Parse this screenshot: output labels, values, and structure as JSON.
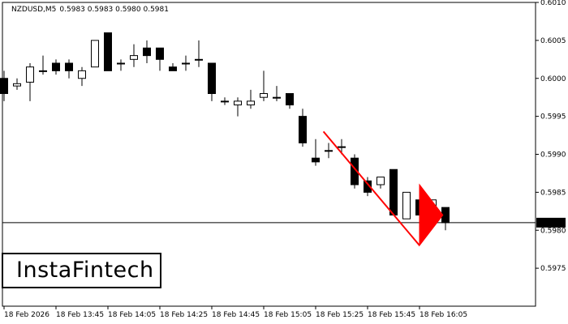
{
  "header": {
    "symbol": "NZDUSD,M5",
    "ohlc": "0.5983 0.5983 0.5980 0.5981"
  },
  "current_price_label": "0.5981",
  "logo_text": "InstaFintech",
  "colors": {
    "background": "#ffffff",
    "candle": "#000000",
    "pattern": "#ff0000",
    "price_label_bg": "#000000",
    "price_label_text": "#ffffff"
  },
  "chart_data": {
    "type": "candlestick",
    "title": "",
    "xlabel": "",
    "ylabel": "",
    "ylim": [
      0.597,
      0.601
    ],
    "y_ticks": [
      "0.6010",
      "0.6005",
      "0.6000",
      "0.5995",
      "0.5990",
      "0.5985",
      "0.5980",
      "0.5975"
    ],
    "x_ticks": [
      {
        "label": "18 Feb 2026",
        "index": 0
      },
      {
        "label": "18 Feb 13:45",
        "index": 4
      },
      {
        "label": "18 Feb 14:05",
        "index": 8
      },
      {
        "label": "18 Feb 14:25",
        "index": 12
      },
      {
        "label": "18 Feb 14:45",
        "index": 16
      },
      {
        "label": "18 Feb 15:05",
        "index": 20
      },
      {
        "label": "18 Feb 15:25",
        "index": 24
      },
      {
        "label": "18 Feb 15:45",
        "index": 28
      },
      {
        "label": "18 Feb 16:05",
        "index": 32
      }
    ],
    "candles": [
      {
        "i": 0,
        "o": 0.6,
        "h": 0.6001,
        "l": 0.5997,
        "c": 0.5998
      },
      {
        "i": 1,
        "o": 0.5999,
        "h": 0.6,
        "l": 0.59985,
        "c": 0.59993
      },
      {
        "i": 2,
        "o": 0.59995,
        "h": 0.6002,
        "l": 0.5997,
        "c": 0.60015
      },
      {
        "i": 3,
        "o": 0.6001,
        "h": 0.6003,
        "l": 0.60005,
        "c": 0.6001
      },
      {
        "i": 4,
        "o": 0.6002,
        "h": 0.60025,
        "l": 0.60005,
        "c": 0.6001
      },
      {
        "i": 5,
        "o": 0.6002,
        "h": 0.60025,
        "l": 0.6,
        "c": 0.6001
      },
      {
        "i": 6,
        "o": 0.6,
        "h": 0.60015,
        "l": 0.5999,
        "c": 0.6001
      },
      {
        "i": 7,
        "o": 0.60015,
        "h": 0.6005,
        "l": 0.60015,
        "c": 0.6005
      },
      {
        "i": 8,
        "o": 0.6006,
        "h": 0.6006,
        "l": 0.6001,
        "c": 0.6001
      },
      {
        "i": 9,
        "o": 0.6002,
        "h": 0.60025,
        "l": 0.6001,
        "c": 0.6002
      },
      {
        "i": 10,
        "o": 0.60025,
        "h": 0.60045,
        "l": 0.60015,
        "c": 0.6003
      },
      {
        "i": 11,
        "o": 0.6004,
        "h": 0.6005,
        "l": 0.6002,
        "c": 0.6003
      },
      {
        "i": 12,
        "o": 0.6004,
        "h": 0.6004,
        "l": 0.6001,
        "c": 0.60025
      },
      {
        "i": 13,
        "o": 0.60015,
        "h": 0.6002,
        "l": 0.6001,
        "c": 0.6001
      },
      {
        "i": 14,
        "o": 0.6002,
        "h": 0.6003,
        "l": 0.6001,
        "c": 0.6002
      },
      {
        "i": 15,
        "o": 0.60025,
        "h": 0.6005,
        "l": 0.60015,
        "c": 0.60025
      },
      {
        "i": 16,
        "o": 0.6002,
        "h": 0.6002,
        "l": 0.5997,
        "c": 0.5998
      },
      {
        "i": 17,
        "o": 0.5997,
        "h": 0.59975,
        "l": 0.59965,
        "c": 0.5997
      },
      {
        "i": 18,
        "o": 0.59965,
        "h": 0.59975,
        "l": 0.5995,
        "c": 0.5997
      },
      {
        "i": 19,
        "o": 0.59965,
        "h": 0.59985,
        "l": 0.5996,
        "c": 0.5997
      },
      {
        "i": 20,
        "o": 0.59975,
        "h": 0.6001,
        "l": 0.5997,
        "c": 0.5998
      },
      {
        "i": 21,
        "o": 0.59975,
        "h": 0.5999,
        "l": 0.5997,
        "c": 0.59975
      },
      {
        "i": 22,
        "o": 0.5998,
        "h": 0.5998,
        "l": 0.5996,
        "c": 0.59965
      },
      {
        "i": 23,
        "o": 0.5995,
        "h": 0.5996,
        "l": 0.5991,
        "c": 0.59915
      },
      {
        "i": 24,
        "o": 0.59895,
        "h": 0.5992,
        "l": 0.59885,
        "c": 0.5989
      },
      {
        "i": 25,
        "o": 0.59905,
        "h": 0.59915,
        "l": 0.59895,
        "c": 0.59905
      },
      {
        "i": 26,
        "o": 0.5991,
        "h": 0.5992,
        "l": 0.599,
        "c": 0.5991
      },
      {
        "i": 27,
        "o": 0.59895,
        "h": 0.599,
        "l": 0.59855,
        "c": 0.5986
      },
      {
        "i": 28,
        "o": 0.59865,
        "h": 0.5987,
        "l": 0.59845,
        "c": 0.5985
      },
      {
        "i": 29,
        "o": 0.5986,
        "h": 0.5987,
        "l": 0.59855,
        "c": 0.5987
      },
      {
        "i": 30,
        "o": 0.5988,
        "h": 0.5988,
        "l": 0.5982,
        "c": 0.5982
      },
      {
        "i": 31,
        "o": 0.59815,
        "h": 0.5985,
        "l": 0.59815,
        "c": 0.5985
      },
      {
        "i": 32,
        "o": 0.5984,
        "h": 0.5984,
        "l": 0.59815,
        "c": 0.5982
      },
      {
        "i": 33,
        "o": 0.59815,
        "h": 0.5984,
        "l": 0.59815,
        "c": 0.5984
      },
      {
        "i": 34,
        "o": 0.5983,
        "h": 0.5983,
        "l": 0.598,
        "c": 0.5981
      }
    ],
    "last_price": 0.5981,
    "pattern": {
      "pole": [
        {
          "i": 24.6,
          "price": 0.5993
        },
        {
          "i": 32.0,
          "price": 0.5978
        }
      ],
      "flag": [
        {
          "i": 32.0,
          "price": 0.5978
        },
        {
          "i": 32.0,
          "price": 0.5986
        },
        {
          "i": 33.8,
          "price": 0.5982
        }
      ]
    }
  }
}
